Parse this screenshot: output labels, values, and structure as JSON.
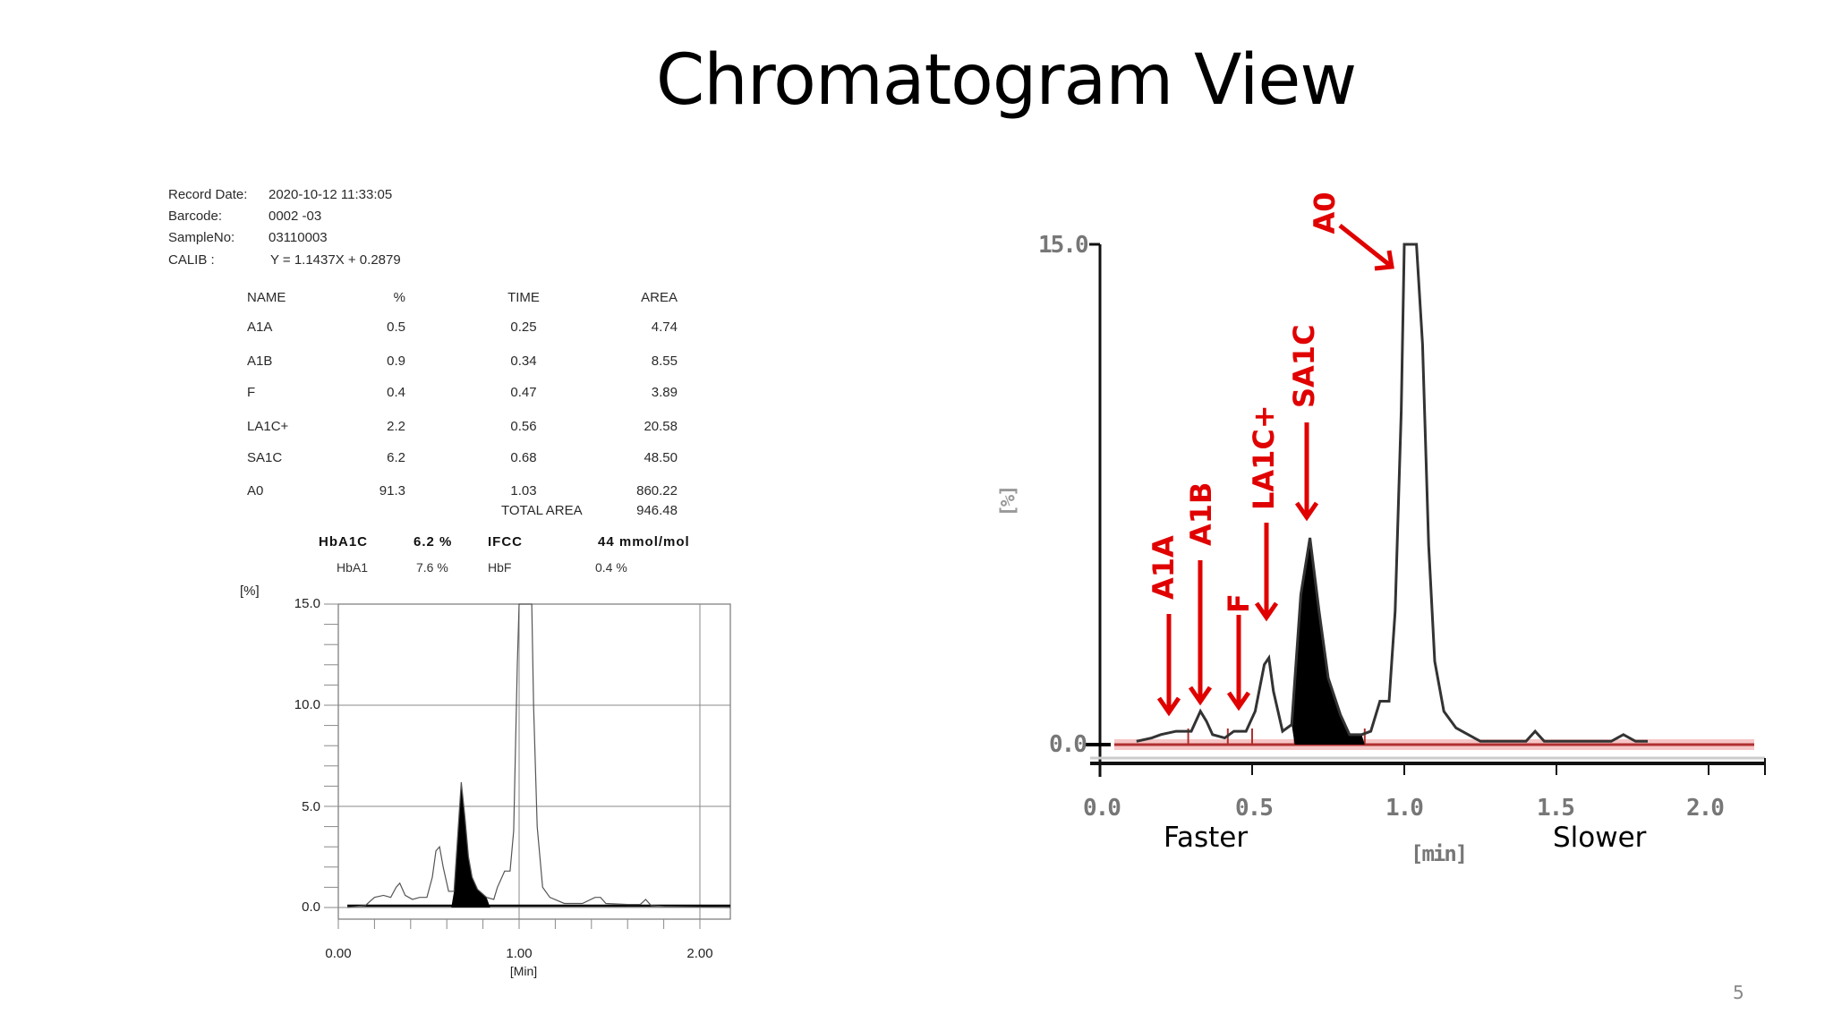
{
  "slide": {
    "title": "Chromatogram View",
    "page_number": "5"
  },
  "report": {
    "meta": [
      {
        "label": "Record Date:",
        "value": "2020-10-12 11:33:05"
      },
      {
        "label": "Barcode:",
        "value": "0002 -03"
      },
      {
        "label": "SampleNo:",
        "value": "03110003"
      },
      {
        "label": "CALIB :",
        "value": "Y = 1.1437X + 0.2879"
      }
    ],
    "table": {
      "headers": [
        "NAME",
        "%",
        "TIME",
        "AREA"
      ],
      "rows": [
        [
          "A1A",
          "0.5",
          "0.25",
          "4.74"
        ],
        [
          "A1B",
          "0.9",
          "0.34",
          "8.55"
        ],
        [
          "F",
          "0.4",
          "0.47",
          "3.89"
        ],
        [
          "LA1C+",
          "2.2",
          "0.56",
          "20.58"
        ],
        [
          "SA1C",
          "6.2",
          "0.68",
          "48.50"
        ],
        [
          "A0",
          "91.3",
          "1.03",
          "860.22"
        ]
      ],
      "total_label": "TOTAL AREA",
      "total_value": "946.48"
    },
    "summary": {
      "hba1c_label": "HbA1C",
      "hba1c_value": "6.2 %",
      "ifcc_label": "IFCC",
      "ifcc_value": "44 mmol/mol",
      "hba1_label": "HbA1",
      "hba1_value": "7.6 %",
      "hbf_label": "HbF",
      "hbf_value": "0.4 %"
    }
  },
  "left_chart": {
    "ylabel": "[%]",
    "xlabel": "[Min]",
    "yticks": [
      "15.0",
      "10.0",
      "5.0",
      "0.0"
    ],
    "xticks": [
      "0.00",
      "1.00",
      "2.00"
    ]
  },
  "right_chart": {
    "ylabel": "[%]",
    "xlabel": "[min]",
    "yticks": [
      "15.0",
      "0.0"
    ],
    "xticks": [
      "0.0",
      "0.5",
      "1.0",
      "1.5",
      "2.0"
    ],
    "annotations": [
      "A1A",
      "A1B",
      "F",
      "LA1C+",
      "SA1C",
      "A0"
    ],
    "faster_label": "Faster",
    "slower_label": "Slower",
    "annotation_color": "#e00000",
    "baseline_color": "#b03030"
  },
  "chart_data": [
    {
      "type": "line",
      "title": "HbA1c HPLC chromatogram (report printout)",
      "xlabel": "[Min]",
      "ylabel": "[%]",
      "xlim": [
        0.0,
        2.17
      ],
      "ylim": [
        0.0,
        15.0
      ],
      "grid": true,
      "shaded_peak": "SA1C",
      "x": [
        0.05,
        0.15,
        0.2,
        0.25,
        0.29,
        0.32,
        0.34,
        0.37,
        0.41,
        0.45,
        0.49,
        0.52,
        0.54,
        0.56,
        0.58,
        0.61,
        0.64,
        0.66,
        0.68,
        0.7,
        0.72,
        0.74,
        0.77,
        0.82,
        0.86,
        0.88,
        0.92,
        0.95,
        0.97,
        0.99,
        1.0,
        1.07,
        1.08,
        1.1,
        1.13,
        1.17,
        1.25,
        1.35,
        1.42,
        1.45,
        1.48,
        1.6,
        1.67,
        1.7,
        1.73,
        1.8,
        2.17
      ],
      "y": [
        0.0,
        0.1,
        0.5,
        0.6,
        0.5,
        1.0,
        1.2,
        0.6,
        0.4,
        0.5,
        0.5,
        1.5,
        2.8,
        3.0,
        2.0,
        0.8,
        0.8,
        3.5,
        6.2,
        4.5,
        2.5,
        1.5,
        0.9,
        0.5,
        0.4,
        1.0,
        1.8,
        1.8,
        3.8,
        12.0,
        15.0,
        15.0,
        10.0,
        4.0,
        1.0,
        0.5,
        0.2,
        0.2,
        0.5,
        0.5,
        0.2,
        0.15,
        0.15,
        0.4,
        0.1,
        0.05,
        0.0
      ],
      "peaks": [
        {
          "name": "A1A",
          "time": 0.25,
          "percent": 0.5
        },
        {
          "name": "A1B",
          "time": 0.34,
          "percent": 0.9
        },
        {
          "name": "F",
          "time": 0.47,
          "percent": 0.4
        },
        {
          "name": "LA1C+",
          "time": 0.56,
          "percent": 2.2
        },
        {
          "name": "SA1C",
          "time": 0.68,
          "percent": 6.2
        },
        {
          "name": "A0",
          "time": 1.03,
          "percent": 91.3
        }
      ]
    },
    {
      "type": "line",
      "title": "Annotated chromatogram (enlarged)",
      "xlabel": "[min]",
      "ylabel": "[%]",
      "xlim": [
        0.0,
        2.2
      ],
      "ylim": [
        0.0,
        15.0
      ],
      "grid": false,
      "shaded_peak": "SA1C",
      "annotations": [
        "A1A",
        "A1B",
        "F",
        "LA1C+",
        "SA1C",
        "A0"
      ],
      "x_notes": {
        "left": "Faster",
        "right": "Slower"
      },
      "x": [
        0.12,
        0.17,
        0.2,
        0.25,
        0.3,
        0.33,
        0.35,
        0.37,
        0.41,
        0.44,
        0.48,
        0.51,
        0.54,
        0.555,
        0.57,
        0.6,
        0.63,
        0.66,
        0.69,
        0.72,
        0.75,
        0.79,
        0.82,
        0.86,
        0.89,
        0.92,
        0.95,
        0.97,
        0.99,
        1.0,
        1.04,
        1.06,
        1.08,
        1.1,
        1.13,
        1.17,
        1.21,
        1.25,
        1.4,
        1.43,
        1.46,
        1.68,
        1.72,
        1.76,
        1.8
      ],
      "y": [
        0.1,
        0.2,
        0.3,
        0.4,
        0.4,
        1.0,
        0.7,
        0.3,
        0.2,
        0.4,
        0.4,
        1.0,
        2.4,
        2.6,
        1.6,
        0.4,
        0.6,
        4.5,
        6.2,
        4.0,
        2.0,
        0.9,
        0.3,
        0.3,
        0.4,
        1.3,
        1.3,
        4.0,
        10.0,
        15.0,
        15.0,
        12.0,
        6.0,
        2.5,
        1.0,
        0.5,
        0.3,
        0.1,
        0.1,
        0.4,
        0.1,
        0.1,
        0.3,
        0.1,
        0.1
      ]
    }
  ]
}
